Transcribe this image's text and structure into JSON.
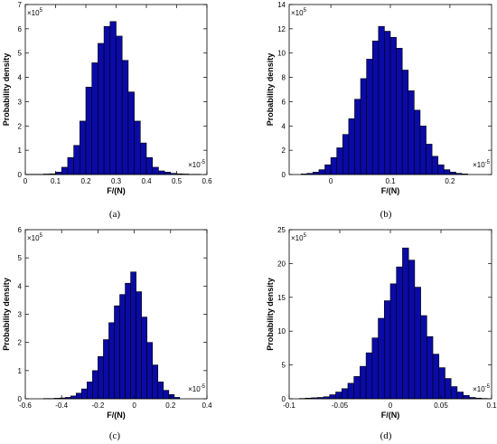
{
  "chart_data": [
    {
      "type": "bar",
      "caption": "(a)",
      "xlabel": "F/(N)",
      "ylabel": "Probability density",
      "x_multiplier": "×10",
      "x_multiplier_exp": "-5",
      "y_multiplier": "×10",
      "y_multiplier_exp": "5",
      "xlim": [
        0,
        0.6
      ],
      "ylim": [
        0,
        7
      ],
      "xticks": [
        "0",
        "0.1",
        "0.2",
        "0.3",
        "0.4",
        "0.5",
        "0.6"
      ],
      "yticks": [
        "0",
        "1",
        "2",
        "3",
        "4",
        "5",
        "6",
        "7"
      ],
      "xtick_values": [
        0,
        0.1,
        0.2,
        0.3,
        0.4,
        0.5,
        0.6
      ],
      "ytick_values": [
        0,
        1,
        2,
        3,
        4,
        5,
        6,
        7
      ],
      "bin_start": 0.0,
      "bin_width": 0.02,
      "values": [
        0.01,
        0.01,
        0.01,
        0.02,
        0.03,
        0.1,
        0.3,
        0.7,
        1.2,
        2.2,
        3.6,
        4.6,
        5.4,
        6.1,
        6.3,
        5.7,
        4.7,
        3.4,
        2.2,
        1.3,
        0.7,
        0.3,
        0.15,
        0.1,
        0.05,
        0.03,
        0.02,
        0.01,
        0.01
      ]
    },
    {
      "type": "bar",
      "caption": "(b)",
      "xlabel": "F/(N)",
      "ylabel": "Probability density",
      "x_multiplier": "×10",
      "x_multiplier_exp": "-5",
      "y_multiplier": "×10",
      "y_multiplier_exp": "5",
      "xlim": [
        -0.07,
        0.27
      ],
      "ylim": [
        0,
        14
      ],
      "xticks": [
        "0",
        "0.1",
        "0.2"
      ],
      "yticks": [
        "0",
        "2",
        "4",
        "6",
        "8",
        "10",
        "12",
        "14"
      ],
      "xtick_values": [
        0,
        0.1,
        0.2
      ],
      "ytick_values": [
        0,
        2,
        4,
        6,
        8,
        10,
        12,
        14
      ],
      "bin_start": -0.05,
      "bin_width": 0.01,
      "values": [
        0.05,
        0.1,
        0.2,
        0.4,
        0.8,
        1.4,
        2.2,
        3.3,
        4.6,
        6.2,
        7.9,
        9.5,
        11.0,
        12.2,
        11.8,
        11.3,
        10.4,
        8.6,
        6.9,
        5.3,
        4.0,
        2.5,
        1.5,
        0.8,
        0.4,
        0.2,
        0.1,
        0.05
      ]
    },
    {
      "type": "bar",
      "caption": "(c)",
      "xlabel": "F/(N)",
      "ylabel": "Probability density",
      "x_multiplier": "×10",
      "x_multiplier_exp": "-5",
      "y_multiplier": "×10",
      "y_multiplier_exp": "5",
      "xlim": [
        -0.6,
        0.4
      ],
      "ylim": [
        0,
        6
      ],
      "xticks": [
        "-0.6",
        "-0.4",
        "-0.2",
        "0",
        "0.2",
        "0.4"
      ],
      "yticks": [
        "0",
        "1",
        "2",
        "3",
        "4",
        "5",
        "6"
      ],
      "xtick_values": [
        -0.6,
        -0.4,
        -0.2,
        0,
        0.2,
        0.4
      ],
      "ytick_values": [
        0,
        1,
        2,
        3,
        4,
        5,
        6
      ],
      "bin_start": -0.5,
      "bin_width": 0.03,
      "values": [
        0.01,
        0.01,
        0.02,
        0.03,
        0.05,
        0.1,
        0.2,
        0.35,
        0.6,
        1.0,
        1.5,
        2.1,
        2.7,
        3.3,
        3.7,
        4.1,
        4.5,
        3.8,
        2.9,
        2.0,
        1.2,
        0.6,
        0.3,
        0.15,
        0.05
      ]
    },
    {
      "type": "bar",
      "caption": "(d)",
      "xlabel": "F/(N)",
      "ylabel": "Probability density",
      "x_multiplier": "×10",
      "x_multiplier_exp": "-5",
      "y_multiplier": "×10",
      "y_multiplier_exp": "5",
      "xlim": [
        -0.1,
        0.1
      ],
      "ylim": [
        0,
        25
      ],
      "xticks": [
        "-0.1",
        "-0.05",
        "0",
        "0.05",
        "0.1"
      ],
      "yticks": [
        "0",
        "5",
        "10",
        "15",
        "20",
        "25"
      ],
      "xtick_values": [
        -0.1,
        -0.05,
        0,
        0.05,
        0.1
      ],
      "ytick_values": [
        0,
        5,
        10,
        15,
        20,
        25
      ],
      "bin_start": -0.09,
      "bin_width": 0.006,
      "values": [
        0.05,
        0.1,
        0.15,
        0.2,
        0.3,
        0.6,
        1.0,
        1.5,
        2.3,
        3.3,
        4.8,
        6.8,
        9.0,
        11.9,
        14.5,
        17.0,
        19.5,
        22.3,
        20.5,
        16.5,
        12.3,
        9.2,
        6.6,
        4.6,
        3.0,
        1.8,
        1.0,
        0.5,
        0.2,
        0.1,
        0.05
      ]
    }
  ]
}
